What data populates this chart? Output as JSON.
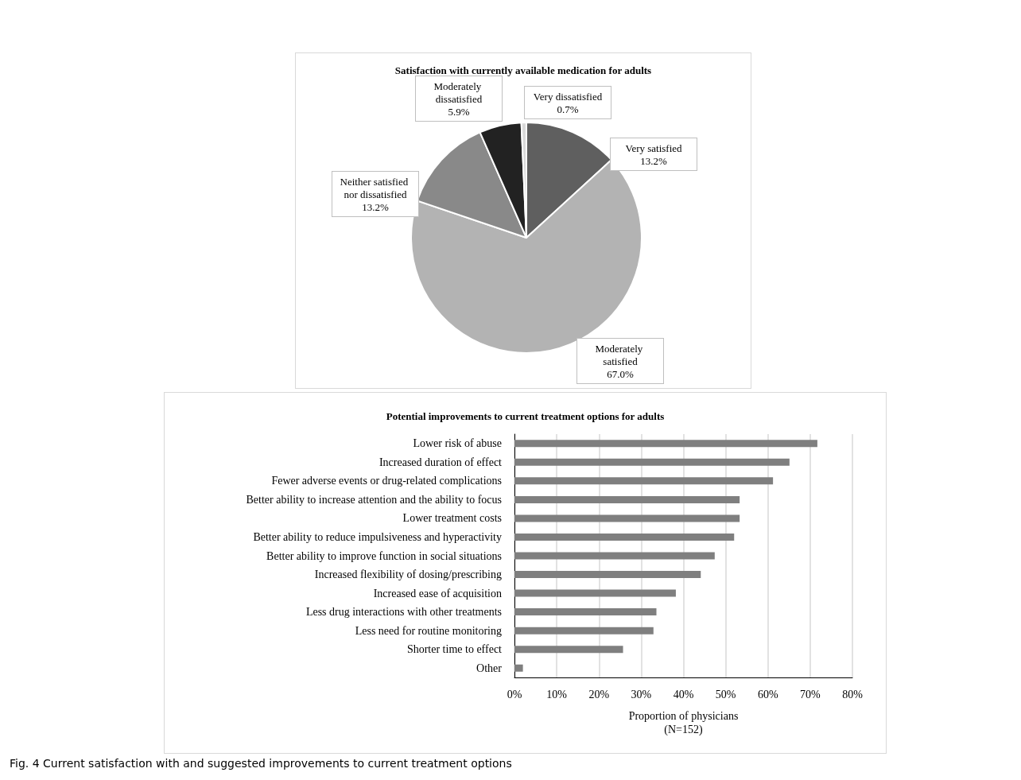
{
  "chart_data": [
    {
      "type": "pie",
      "title": "Satisfaction with currently available medication for adults",
      "categories": [
        "Very satisfied",
        "Moderately satisfied",
        "Neither satisfied nor dissatisfied",
        "Moderately dissatisfied",
        "Very dissatisfied"
      ],
      "values": [
        13.2,
        67.0,
        13.2,
        5.9,
        0.7
      ],
      "colors": [
        "#5f5f5f",
        "#b3b3b3",
        "#898989",
        "#222222",
        "#d9d9d9"
      ],
      "value_labels": [
        "13.2%",
        "67.0%",
        "13.2%",
        "5.9%",
        "0.7%"
      ]
    },
    {
      "type": "bar",
      "orientation": "horizontal",
      "title": "Potential improvements to current treatment options for adults",
      "categories": [
        "Lower risk of abuse",
        "Increased duration of effect",
        "Fewer adverse events or drug-related complications",
        "Better ability to increase attention and the ability to focus",
        "Lower treatment costs",
        "Better ability to reduce impulsiveness and hyperactivity",
        "Better ability to improve function in social situations",
        "Increased flexibility of dosing/prescribing",
        "Increased ease of acquisition",
        "Less drug interactions with other treatments",
        "Less need for routine monitoring",
        "Shorter time to effect",
        "Other"
      ],
      "values": [
        71.7,
        65.1,
        61.2,
        53.3,
        53.3,
        52.0,
        47.4,
        44.1,
        38.2,
        33.6,
        32.9,
        25.7,
        2.0
      ],
      "color": "#7f7f7f",
      "xlim": [
        0,
        80
      ],
      "xticks": [
        {
          "value": 0,
          "label": "0%"
        },
        {
          "value": 10,
          "label": "10%"
        },
        {
          "value": 20,
          "label": "20%"
        },
        {
          "value": 30,
          "label": "30%"
        },
        {
          "value": 40,
          "label": "40%"
        },
        {
          "value": 50,
          "label": "50%"
        },
        {
          "value": 60,
          "label": "60%"
        },
        {
          "value": 70,
          "label": "70%"
        },
        {
          "value": 80,
          "label": "80%"
        }
      ],
      "grid": "x",
      "xlabel": "Proportion of physicians\n(N=152)",
      "annotations": [
        "Fig. 4 Current satisfaction with and suggested improvements to current treatment options"
      ]
    }
  ]
}
